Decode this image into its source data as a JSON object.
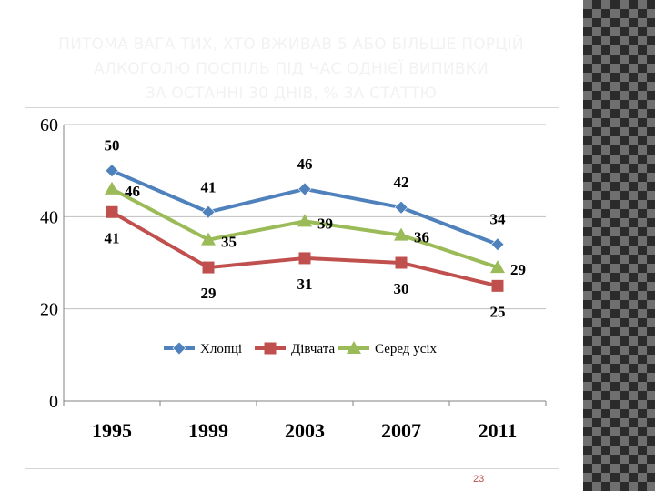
{
  "title_lines": [
    "ПИТОМА ВАГА ТИХ, ХТО ВЖИВАВ 5 АБО БІЛЬШЕ ПОРЦІЙ",
    "АЛКОГОЛЮ ПОСПІЛЬ ПІД ЧАС ОДНІЄЇ ВИПИВКИ",
    "ЗА ОСТАННІ 30 ДНІВ, % ЗА СТАТТЮ"
  ],
  "page_number": "23",
  "colors": {
    "title": "#f2f2f2",
    "page_number": "#c0504d",
    "boys": "#4f81bd",
    "girls": "#c0504d",
    "all": "#9bbb59"
  },
  "chart_data": {
    "type": "line",
    "categories": [
      "1995",
      "1999",
      "2003",
      "2007",
      "2011"
    ],
    "ylim": [
      0,
      60
    ],
    "yticks": [
      "0",
      "20",
      "40",
      "60"
    ],
    "grid": true,
    "legend_position": "bottom-inside",
    "series": [
      {
        "name": "Хлопці",
        "values": [
          50,
          41,
          46,
          42,
          34
        ],
        "marker": "diamond",
        "color": "#4f81bd"
      },
      {
        "name": "Дівчата",
        "values": [
          41,
          29,
          31,
          30,
          25
        ],
        "marker": "square",
        "color": "#c0504d"
      },
      {
        "name": "Серед усіх",
        "values": [
          46,
          35,
          39,
          36,
          29
        ],
        "marker": "triangle",
        "color": "#9bbb59"
      }
    ]
  }
}
